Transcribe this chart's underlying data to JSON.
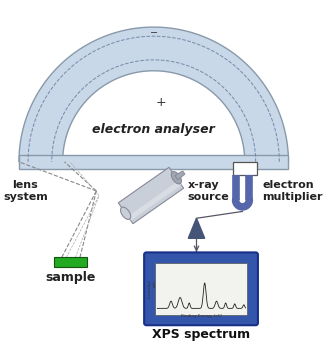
{
  "bg_color": "#ffffff",
  "analyser_fill": "#c8d8e8",
  "analyser_edge": "#8899aa",
  "analyser_fill2": "#d5e3ef",
  "text_electron_analyser": "electron analyser",
  "text_lens_system": "lens\nsystem",
  "text_xray_source": "x-ray\nsource",
  "text_electron_multiplier": "electron\nmultiplier",
  "text_sample": "sample",
  "text_xps_spectrum": "XPS spectrum",
  "text_minus": "−",
  "text_plus": "+",
  "sample_color": "#22aa22",
  "sample_edge": "#115511",
  "multiplier_color": "#5566aa",
  "multiplier_dark": "#3d4d7a",
  "triangle_color": "#445577",
  "spectrum_bg": "#3355aa",
  "spectrum_inner_bg": "#f2f2ee",
  "cyl_body": "#c8cfd8",
  "cyl_edge": "#888899",
  "cyl_light": "#e0e4ea",
  "cyl_dark": "#a0a8b2",
  "dashed_color": "#7788aa",
  "line_color": "#555566"
}
